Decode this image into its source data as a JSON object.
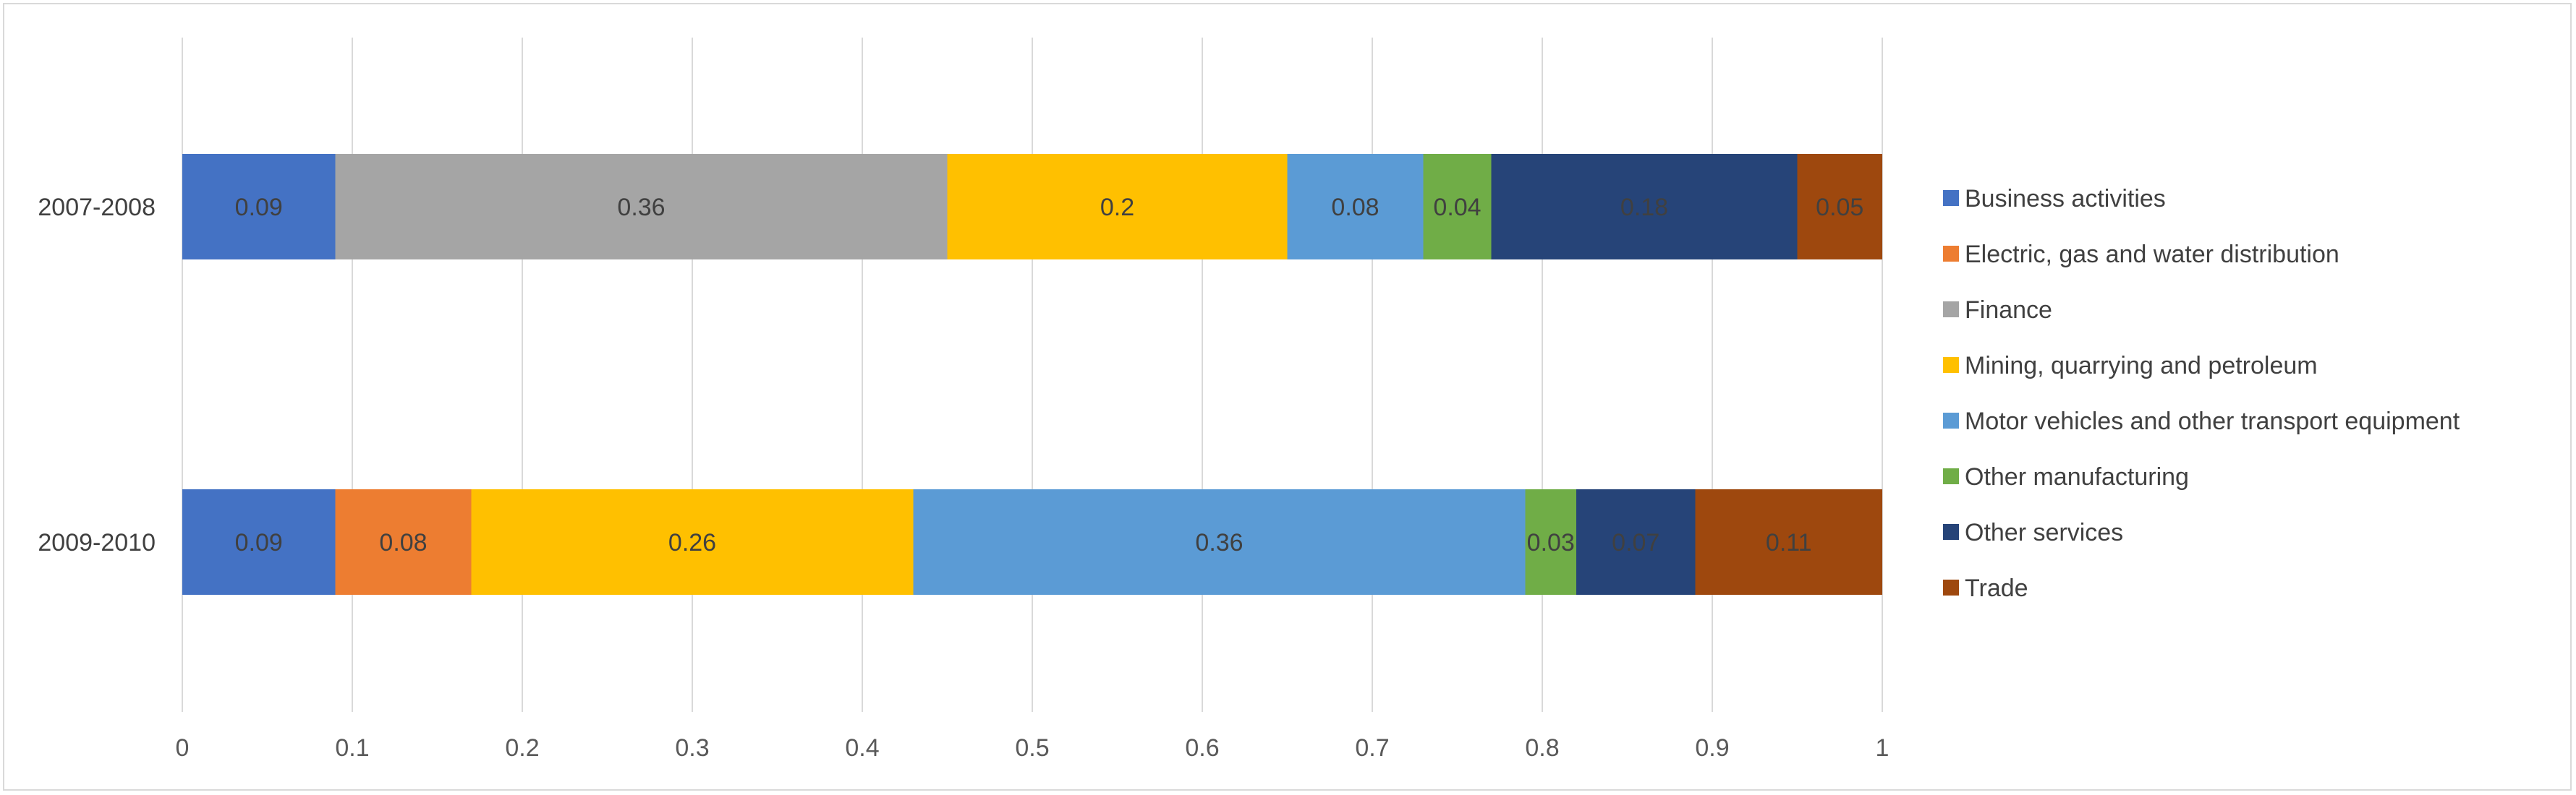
{
  "chart_data": {
    "type": "bar",
    "orientation": "horizontal",
    "stacked": true,
    "categories": [
      "2007-2008",
      "2009-2010"
    ],
    "xlim": [
      0,
      1
    ],
    "xticks": [
      "0",
      "0.1",
      "0.2",
      "0.3",
      "0.4",
      "0.5",
      "0.6",
      "0.7",
      "0.8",
      "0.9",
      "1"
    ],
    "xtick_values": [
      0,
      0.1,
      0.2,
      0.3,
      0.4,
      0.5,
      0.6,
      0.7,
      0.8,
      0.9,
      1
    ],
    "grid": "vertical",
    "legend_position": "right",
    "series": [
      {
        "name": "Business activities",
        "color": "#4472C4",
        "values": [
          0.09,
          0.09
        ],
        "labels": [
          "0.09",
          "0.09"
        ]
      },
      {
        "name": "Electric, gas and water distribution",
        "color": "#ED7D31",
        "values": [
          0,
          0.08
        ],
        "labels": [
          "",
          "0.08"
        ]
      },
      {
        "name": "Finance",
        "color": "#A5A5A5",
        "values": [
          0.36,
          0
        ],
        "labels": [
          "0.36",
          ""
        ]
      },
      {
        "name": "Mining, quarrying and petroleum",
        "color": "#FFC000",
        "values": [
          0.2,
          0.26
        ],
        "labels": [
          "0.2",
          "0.26"
        ]
      },
      {
        "name": "Motor vehicles and other transport equipment",
        "color": "#5B9BD5",
        "values": [
          0.08,
          0.36
        ],
        "labels": [
          "0.08",
          "0.36"
        ]
      },
      {
        "name": "Other manufacturing",
        "color": "#70AD47",
        "values": [
          0.04,
          0.03
        ],
        "labels": [
          "0.04",
          "0.03"
        ]
      },
      {
        "name": "Other services",
        "color": "#264478",
        "values": [
          0.18,
          0.07
        ],
        "labels": [
          "0.18",
          "0.07"
        ]
      },
      {
        "name": "Trade",
        "color": "#9E480E",
        "values": [
          0.05,
          0.11
        ],
        "labels": [
          "0.05",
          "0.11"
        ]
      }
    ]
  }
}
